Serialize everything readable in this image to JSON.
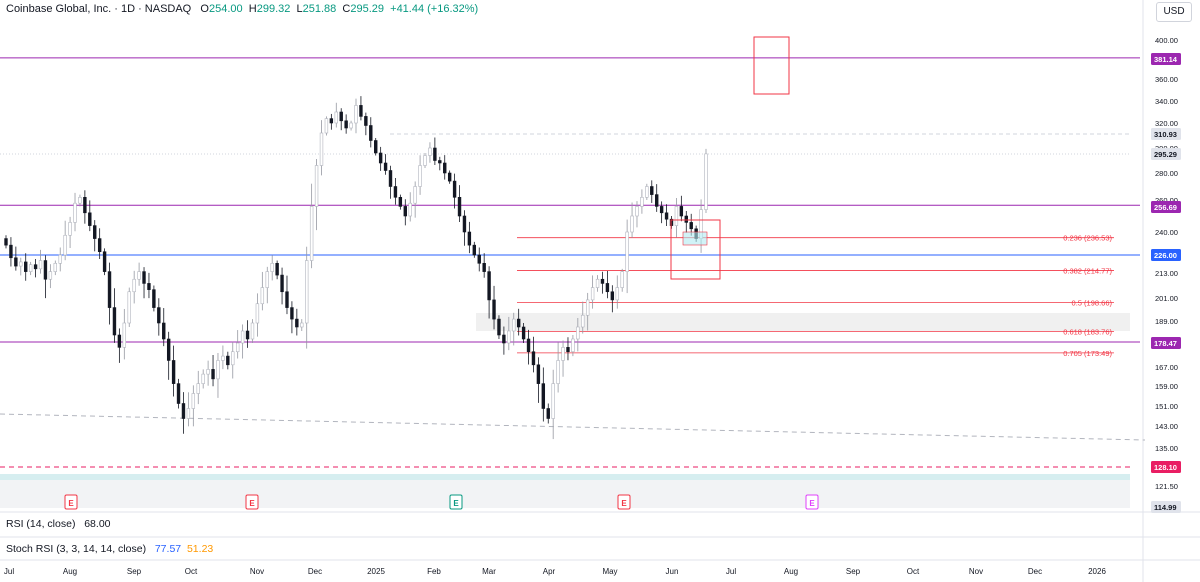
{
  "header": {
    "symbol": "Coinbase Global, Inc. · 1D · NASDAQ",
    "o_key": "O",
    "o_val": "254.00",
    "h_key": "H",
    "h_val": "299.32",
    "l_key": "L",
    "l_val": "251.88",
    "c_key": "C",
    "c_val": "295.29",
    "change": "+41.44 (+16.32%)"
  },
  "currency": "USD",
  "indicators": {
    "rsi_label": "RSI (14, close)",
    "rsi_value": "68.00",
    "stoch_label": "Stoch RSI (3, 3, 14, 14, close)",
    "stoch_k": "77.57",
    "stoch_d": "51.23"
  },
  "colors": {
    "up": "#089981",
    "down": "#f23645",
    "purple": "#9c27b0",
    "blue": "#2962ff",
    "fib": "#f23645",
    "poc": "#e91e63",
    "grid": "#f0f3fa"
  },
  "chart_data": {
    "type": "candlestick",
    "symbol": "COIN",
    "x_labels": [
      "Jul",
      "Aug",
      "Sep",
      "Oct",
      "Nov",
      "Dec",
      "2025",
      "Feb",
      "Mar",
      "Apr",
      "May",
      "Jun",
      "Jul",
      "Aug",
      "Sep",
      "Oct",
      "Nov",
      "Dec",
      "2026"
    ],
    "y_ticks": [
      "400.00",
      "380.00",
      "360.00",
      "340.00",
      "320.00",
      "300.00",
      "280.00",
      "260.00",
      "240.00",
      "226.00",
      "213.00",
      "201.00",
      "189.00",
      "178.00",
      "167.00",
      "159.00",
      "151.00",
      "143.00",
      "135.00",
      "128.00",
      "121.50",
      "114.99"
    ],
    "price_tags": [
      {
        "value": "381.14",
        "color": "#9c27b0"
      },
      {
        "value": "310.93",
        "color": "#e0e3eb"
      },
      {
        "value": "295.29",
        "color": "#e0e3eb"
      },
      {
        "value": "256.69",
        "color": "#9c27b0"
      },
      {
        "value": "226.00",
        "color": "#2962ff"
      },
      {
        "value": "178.47",
        "color": "#9c27b0"
      },
      {
        "value": "128.10",
        "color": "#e91e63"
      },
      {
        "value": "114.99",
        "color": "#e0e3eb"
      }
    ],
    "fib_levels": [
      {
        "label": "0.236 (236.53)",
        "price": 236.53
      },
      {
        "label": "0.382 (214.77)",
        "price": 214.77
      },
      {
        "label": "0.5 (198.66)",
        "price": 198.66
      },
      {
        "label": "0.618 (183.76)",
        "price": 183.76
      },
      {
        "label": "0.705 (173.49)",
        "price": 173.49
      }
    ],
    "horizontal_lines": [
      381.14,
      256.69,
      226.0,
      178.47
    ],
    "earnings_markers": [
      "E",
      "E",
      "E",
      "E",
      "E"
    ],
    "ohlc_last": {
      "open": 254.0,
      "high": 299.32,
      "low": 251.88,
      "close": 295.29
    },
    "closes": [
      232,
      224,
      218,
      221,
      214,
      219,
      216,
      222,
      210,
      214,
      220,
      226,
      238,
      246,
      258,
      262,
      252,
      244,
      236,
      228,
      214,
      196,
      182,
      176,
      188,
      204,
      210,
      214,
      208,
      205,
      196,
      188,
      180,
      170,
      160,
      152,
      146,
      150,
      156,
      160,
      164,
      166,
      162,
      170,
      172,
      168,
      174,
      178,
      184,
      180,
      188,
      198,
      206,
      214,
      220,
      212,
      204,
      196,
      190,
      186,
      188,
      222,
      256,
      286,
      312,
      324,
      320,
      330,
      322,
      316,
      320,
      336,
      326,
      318,
      306,
      296,
      288,
      282,
      270,
      262,
      256,
      250,
      258,
      270,
      286,
      294,
      300,
      290,
      288,
      280,
      274,
      262,
      250,
      240,
      232,
      226,
      220,
      214,
      200,
      190,
      182,
      178,
      184,
      190,
      186,
      180,
      174,
      168,
      160,
      150,
      146,
      160,
      170,
      176,
      174,
      180,
      186,
      192,
      200,
      206,
      210,
      208,
      204,
      200,
      206,
      214,
      240,
      250,
      256,
      262,
      270,
      264,
      256,
      252,
      248,
      244,
      256,
      250,
      246,
      242,
      236,
      254,
      295.29
    ],
    "price_range": [
      110,
      405
    ]
  }
}
